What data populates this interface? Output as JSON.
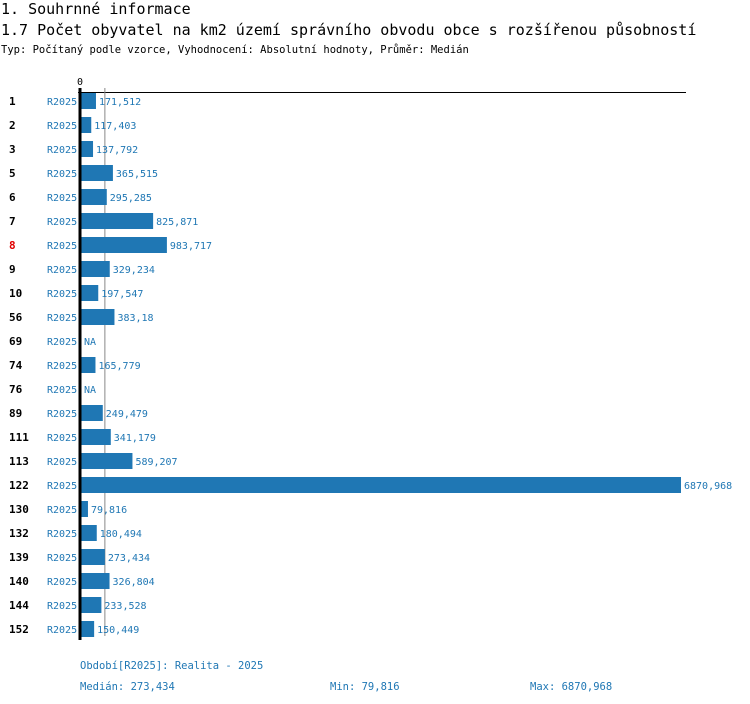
{
  "header": {
    "section": "1. Souhrnné informace",
    "title": "1.7 Počet obyvatel na km2 území správního obvodu obce s rozšířenou působností",
    "subtitle": "Typ: Počítaný podle vzorce, Vyhodnocení: Absolutní hodnoty, Průměr: Medián"
  },
  "chart_data": {
    "type": "bar",
    "orientation": "horizontal",
    "axis_zero_label": "0",
    "series_label": "R2025",
    "highlight_category": "8",
    "highlight_color": "#e00000",
    "bar_color": "#1f77b4",
    "categories": [
      "1",
      "2",
      "3",
      "5",
      "6",
      "7",
      "8",
      "9",
      "10",
      "56",
      "69",
      "74",
      "76",
      "89",
      "111",
      "113",
      "122",
      "130",
      "132",
      "139",
      "140",
      "144",
      "152"
    ],
    "values": [
      171.512,
      117.403,
      137.792,
      365.515,
      295.285,
      825.871,
      983.717,
      329.234,
      197.547,
      383.18,
      null,
      165.779,
      null,
      249.479,
      341.179,
      589.207,
      6870.968,
      79.816,
      180.494,
      273.434,
      326.804,
      233.528,
      150.449
    ],
    "labels": [
      "171,512",
      "117,403",
      "137,792",
      "365,515",
      "295,285",
      "825,871",
      "983,717",
      "329,234",
      "197,547",
      "383,18",
      "NA",
      "165,779",
      "NA",
      "249,479",
      "341,179",
      "589,207",
      "6870,968",
      "79,816",
      "180,494",
      "273,434",
      "326,804",
      "233,528",
      "150,449"
    ],
    "median": 273.434,
    "xlim": [
      0,
      6870.968
    ]
  },
  "footer": {
    "period": "Období[R2025]: Realita - 2025",
    "median": "Medián: 273,434",
    "min": "Min: 79,816",
    "max": "Max: 6870,968"
  }
}
